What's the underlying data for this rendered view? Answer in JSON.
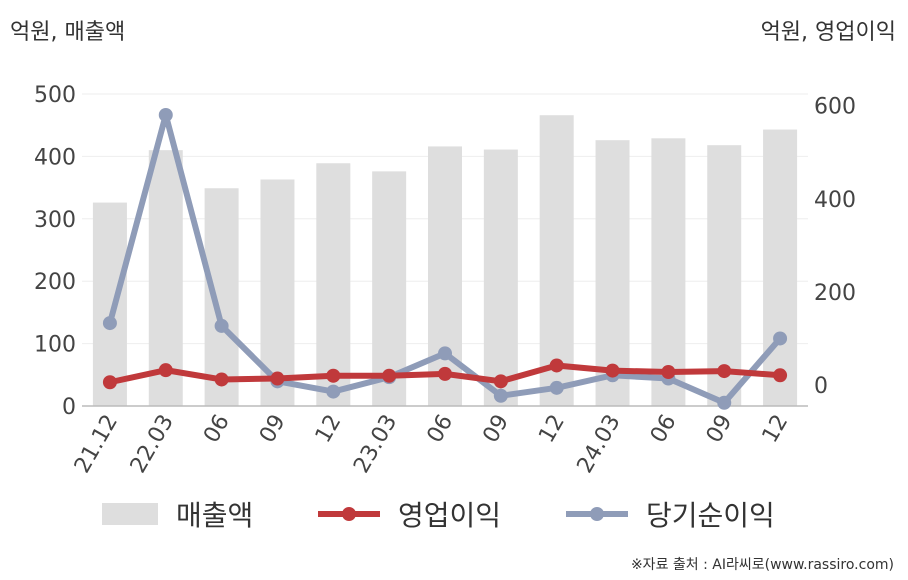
{
  "units": {
    "left": "억원, 매출액",
    "right": "억원, 영업이익"
  },
  "source": "※자료 출처 : AI라씨로(www.rassiro.com)",
  "colors": {
    "bar": "#dedede",
    "operating_profit": "#c0393b",
    "net_income": "#8f9cb8",
    "axis": "#bbbbbb",
    "grid": "#eeeeee"
  },
  "chart_data": {
    "type": "bar",
    "categories": [
      "21.12",
      "22.03",
      "06",
      "09",
      "12",
      "23.03",
      "06",
      "09",
      "12",
      "24.03",
      "06",
      "09",
      "12"
    ],
    "y_left": {
      "ylim": [
        0,
        500
      ],
      "ticks": [
        0,
        100,
        200,
        300,
        400,
        500
      ]
    },
    "y_right": {
      "ylim": [
        -45,
        625
      ],
      "ticks": [
        0,
        200,
        400,
        600
      ]
    },
    "series": [
      {
        "name": "매출액",
        "type": "bar",
        "axis": "left",
        "values": [
          326,
          410,
          349,
          363,
          389,
          376,
          416,
          411,
          466,
          426,
          429,
          418,
          443
        ]
      },
      {
        "name": "영업이익",
        "type": "line",
        "axis": "right",
        "values": [
          6,
          32,
          12,
          14,
          20,
          20,
          24,
          8,
          42,
          31,
          28,
          30,
          21
        ]
      },
      {
        "name": "당기순이익",
        "type": "line",
        "axis": "right",
        "values": [
          133,
          580,
          127,
          8,
          -14,
          17,
          68,
          -23,
          -6,
          21,
          14,
          -38,
          100
        ]
      }
    ],
    "legend": [
      "매출액",
      "영업이익",
      "당기순이익"
    ],
    "legend_position": "bottom",
    "grid": true
  }
}
